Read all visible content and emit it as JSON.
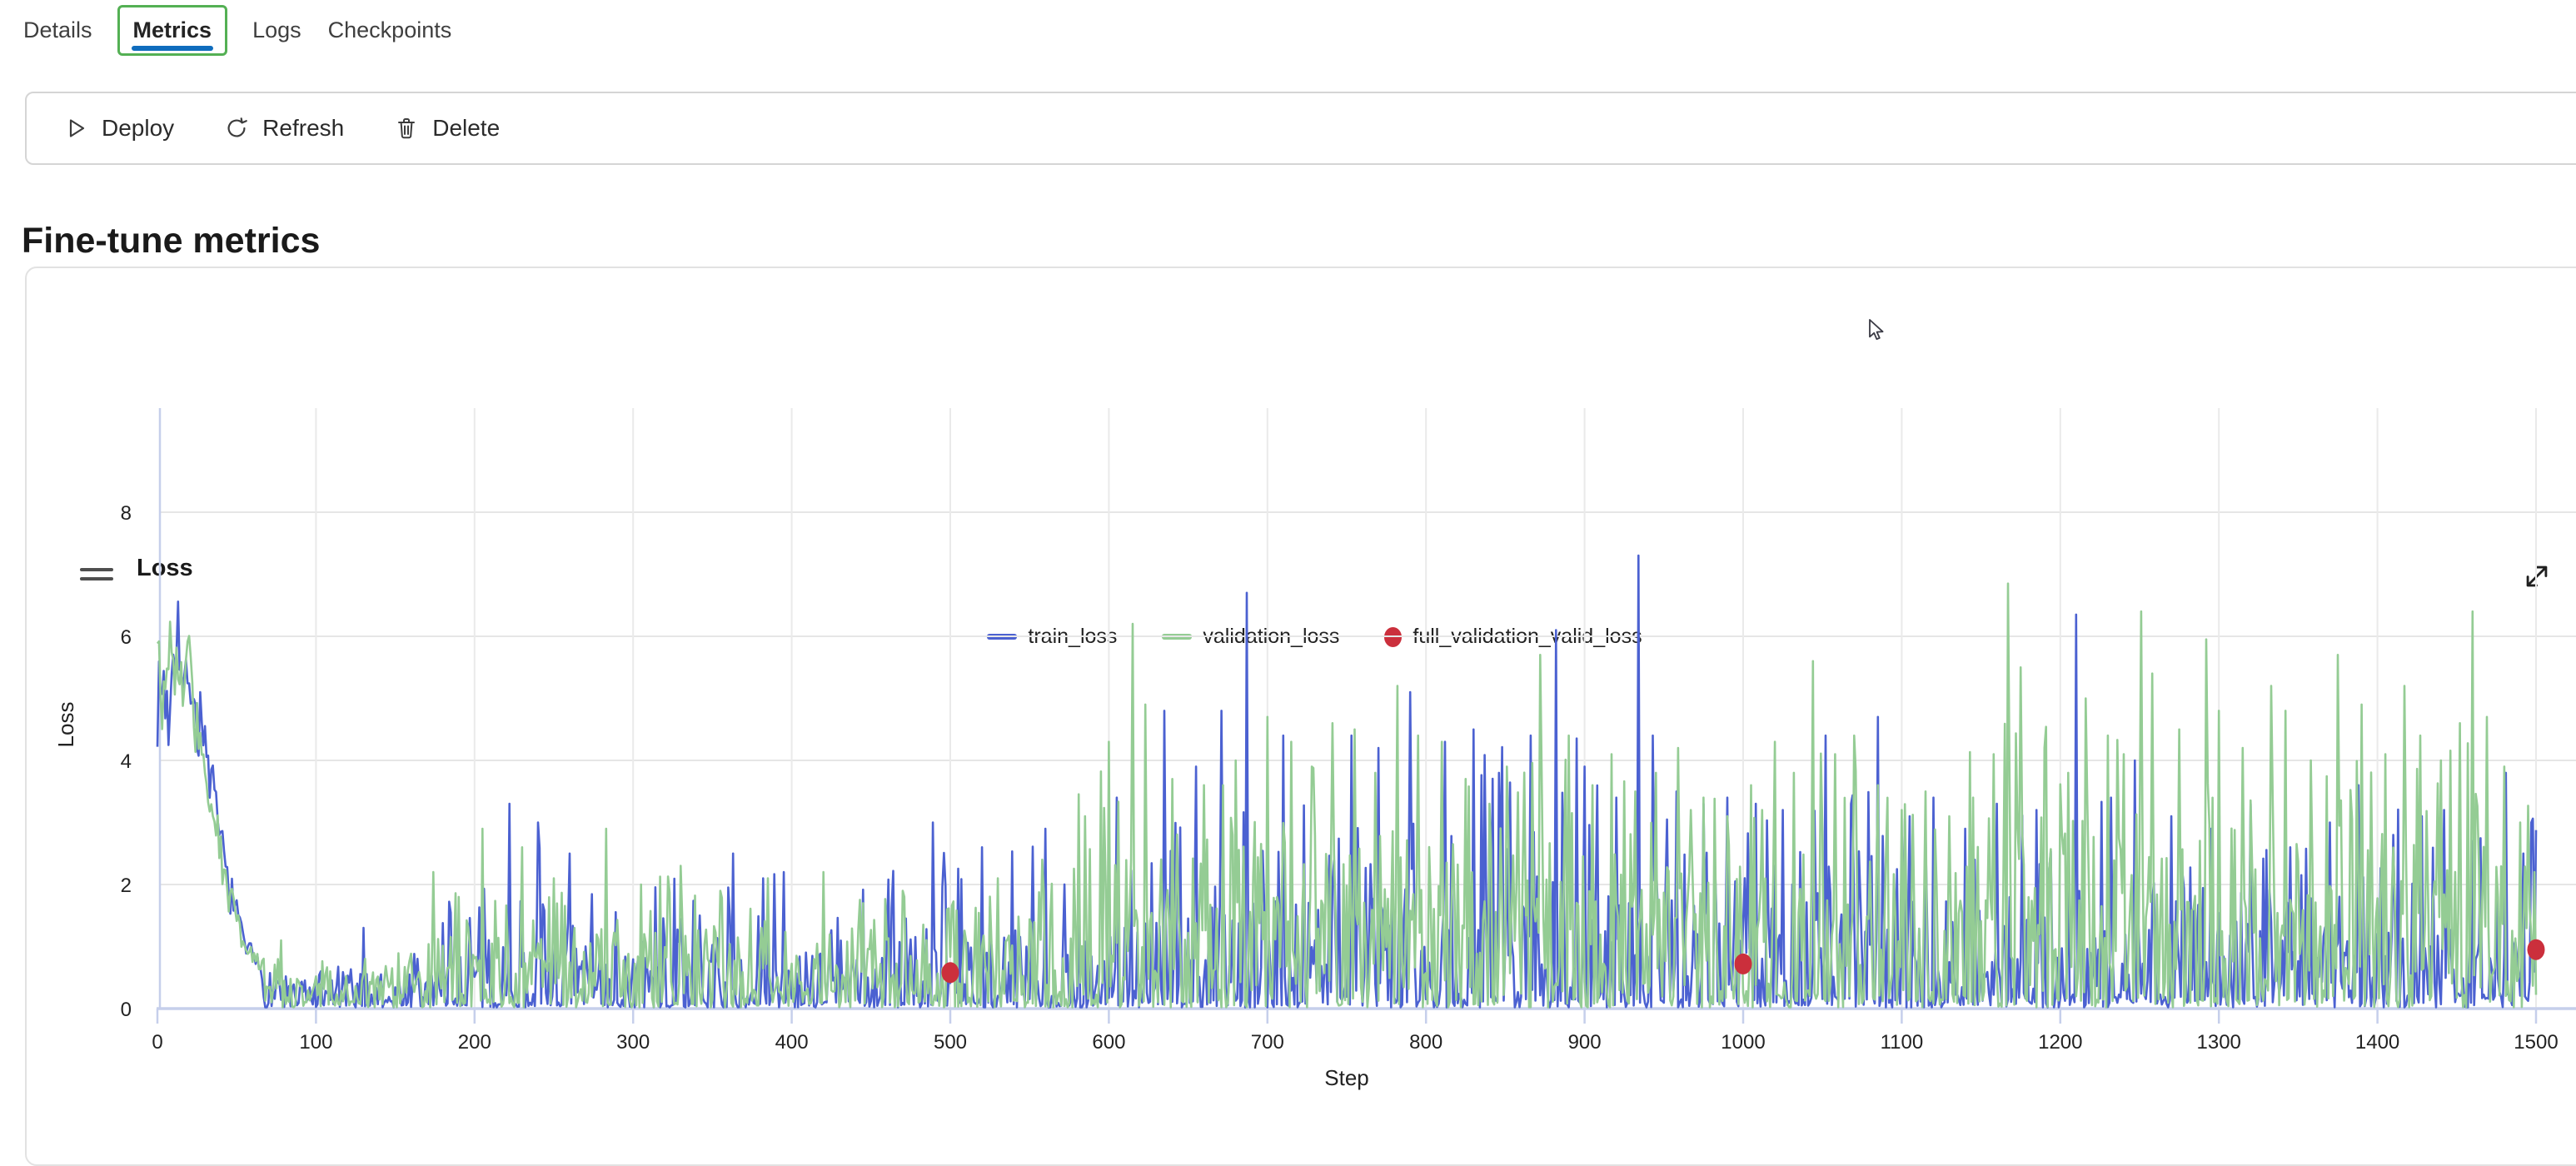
{
  "tabs": {
    "items": [
      {
        "label": "Details",
        "selected": false
      },
      {
        "label": "Metrics",
        "selected": true
      },
      {
        "label": "Logs",
        "selected": false
      },
      {
        "label": "Checkpoints",
        "selected": false
      }
    ]
  },
  "toolbar": {
    "buttons": [
      {
        "label": "Deploy",
        "icon": "play-icon"
      },
      {
        "label": "Refresh",
        "icon": "refresh-icon"
      },
      {
        "label": "Delete",
        "icon": "delete-icon"
      }
    ]
  },
  "page": {
    "heading": "Fine-tune metrics"
  },
  "card": {
    "title": "Loss"
  },
  "colors": {
    "train": "#4b61d1",
    "validation": "#94cc94",
    "full_validation": "#cb2f3c",
    "tab_underline": "#0f6cbd",
    "tab_focus": "#54b054",
    "axis": "#c6cfeb",
    "grid": "#e6e6e6"
  },
  "chart_data": {
    "type": "line",
    "title": "Loss",
    "xlabel": "Step",
    "ylabel": "Loss",
    "xlim": [
      0,
      1500
    ],
    "ylim": [
      0,
      9.7
    ],
    "x_ticks": [
      0,
      100,
      200,
      300,
      400,
      500,
      600,
      700,
      800,
      900,
      1000,
      1100,
      1200,
      1300,
      1400,
      1500
    ],
    "y_ticks": [
      0,
      2,
      4,
      6,
      8
    ],
    "grid": true,
    "legend_position": "top-center",
    "gen": {
      "floor": [
        [
          68,
          0.1
        ],
        [
          300,
          0.09
        ],
        [
          600,
          0.12
        ],
        [
          1000,
          0.16
        ],
        [
          1500,
          0.2
        ]
      ],
      "early_end": 66
    },
    "series": [
      {
        "name": "train_loss",
        "type": "line",
        "color": "#4b61d1",
        "seed": 7,
        "probs": {
          "zero": 0.34,
          "low": 0.44,
          "mid": 0.16,
          "high": 0.06
        },
        "early_path": [
          [
            0,
            4.9
          ],
          [
            4,
            5.3
          ],
          [
            7,
            4.6
          ],
          [
            10,
            5.9
          ],
          [
            13,
            6.4
          ],
          [
            16,
            4.8
          ],
          [
            19,
            5.7
          ],
          [
            22,
            5.1
          ],
          [
            25,
            4.4
          ],
          [
            28,
            4.9
          ],
          [
            31,
            3.9
          ],
          [
            34,
            3.6
          ],
          [
            38,
            3.0
          ],
          [
            42,
            2.4
          ],
          [
            46,
            1.9
          ],
          [
            50,
            1.5
          ],
          [
            55,
            1.05
          ],
          [
            60,
            0.8
          ],
          [
            66,
            0.6
          ]
        ],
        "envelope": [
          [
            68,
            0.75
          ],
          [
            150,
            0.95
          ],
          [
            200,
            2.4
          ],
          [
            250,
            2.6
          ],
          [
            310,
            2.0
          ],
          [
            370,
            2.2
          ],
          [
            430,
            2.1
          ],
          [
            490,
            2.5
          ],
          [
            550,
            2.7
          ],
          [
            610,
            3.1
          ],
          [
            660,
            3.9
          ],
          [
            700,
            4.3
          ],
          [
            760,
            3.9
          ],
          [
            820,
            4.0
          ],
          [
            880,
            4.6
          ],
          [
            940,
            4.6
          ],
          [
            1000,
            3.3
          ],
          [
            1060,
            3.7
          ],
          [
            1120,
            3.1
          ],
          [
            1180,
            3.7
          ],
          [
            1220,
            3.9
          ],
          [
            1280,
            3.2
          ],
          [
            1340,
            3.0
          ],
          [
            1400,
            3.2
          ],
          [
            1470,
            3.1
          ],
          [
            1500,
            3.1
          ]
        ],
        "peaks": [
          [
            130,
            1.3
          ],
          [
            222,
            3.3
          ],
          [
            240,
            3.0
          ],
          [
            260,
            2.5
          ],
          [
            363,
            2.5
          ],
          [
            395,
            2.2
          ],
          [
            489,
            3.0
          ],
          [
            520,
            2.6
          ],
          [
            560,
            2.9
          ],
          [
            605,
            3.4
          ],
          [
            635,
            4.8
          ],
          [
            655,
            3.9
          ],
          [
            671,
            4.8
          ],
          [
            687,
            6.7
          ],
          [
            710,
            4.4
          ],
          [
            753,
            4.4
          ],
          [
            770,
            4.2
          ],
          [
            790,
            5.1
          ],
          [
            812,
            4.3
          ],
          [
            830,
            4.5
          ],
          [
            846,
            3.8
          ],
          [
            866,
            4.4
          ],
          [
            882,
            6.1
          ],
          [
            900,
            3.9
          ],
          [
            920,
            3.4
          ],
          [
            934,
            7.3
          ],
          [
            943,
            4.4
          ],
          [
            958,
            3.5
          ],
          [
            975,
            3.3
          ],
          [
            990,
            3.4
          ],
          [
            1008,
            3.3
          ],
          [
            1025,
            3.2
          ],
          [
            1052,
            4.4
          ],
          [
            1068,
            3.3
          ],
          [
            1085,
            4.7
          ],
          [
            1105,
            3.1
          ],
          [
            1120,
            3.4
          ],
          [
            1140,
            2.9
          ],
          [
            1160,
            3.3
          ],
          [
            1185,
            3.2
          ],
          [
            1210,
            6.35
          ],
          [
            1232,
            3.4
          ],
          [
            1247,
            4.0
          ],
          [
            1270,
            3.1
          ],
          [
            1295,
            2.9
          ],
          [
            1320,
            3.3
          ],
          [
            1345,
            2.6
          ],
          [
            1370,
            3.0
          ],
          [
            1388,
            3.6
          ],
          [
            1410,
            2.8
          ],
          [
            1428,
            3.1
          ],
          [
            1442,
            3.2
          ],
          [
            1460,
            2.7
          ],
          [
            1481,
            3.8
          ],
          [
            1492,
            2.5
          ],
          [
            1497,
            3.0
          ]
        ]
      },
      {
        "name": "validation_loss",
        "type": "line",
        "color": "#94cc94",
        "seed": 99,
        "probs": {
          "zero": 0.24,
          "low": 0.42,
          "mid": 0.27,
          "high": 0.07
        },
        "early_path": [
          [
            0,
            6.1
          ],
          [
            3,
            5.2
          ],
          [
            6,
            5.6
          ],
          [
            8,
            6.2
          ],
          [
            11,
            5.1
          ],
          [
            14,
            5.6
          ],
          [
            17,
            5.0
          ],
          [
            20,
            5.8
          ],
          [
            23,
            4.7
          ],
          [
            26,
            4.3
          ],
          [
            30,
            3.7
          ],
          [
            34,
            3.2
          ],
          [
            38,
            2.7
          ],
          [
            43,
            2.1
          ],
          [
            48,
            1.6
          ],
          [
            53,
            1.2
          ],
          [
            58,
            0.9
          ],
          [
            66,
            0.62
          ]
        ],
        "envelope": [
          [
            68,
            0.8
          ],
          [
            150,
            1.0
          ],
          [
            200,
            2.1
          ],
          [
            260,
            1.9
          ],
          [
            320,
            2.1
          ],
          [
            380,
            1.8
          ],
          [
            440,
            1.9
          ],
          [
            500,
            1.7
          ],
          [
            545,
            2.2
          ],
          [
            600,
            4.1
          ],
          [
            650,
            3.7
          ],
          [
            705,
            4.0
          ],
          [
            760,
            3.9
          ],
          [
            820,
            3.7
          ],
          [
            880,
            4.1
          ],
          [
            940,
            3.7
          ],
          [
            1000,
            3.4
          ],
          [
            1050,
            4.1
          ],
          [
            1110,
            3.3
          ],
          [
            1170,
            4.8
          ],
          [
            1230,
            4.3
          ],
          [
            1290,
            4.4
          ],
          [
            1350,
            4.2
          ],
          [
            1410,
            4.3
          ],
          [
            1470,
            4.5
          ],
          [
            1500,
            3.0
          ]
        ],
        "peaks": [
          [
            78,
            1.1
          ],
          [
            174,
            2.2
          ],
          [
            190,
            1.8
          ],
          [
            205,
            2.9
          ],
          [
            230,
            2.6
          ],
          [
            250,
            2.1
          ],
          [
            283,
            2.9
          ],
          [
            305,
            2.0
          ],
          [
            330,
            2.3
          ],
          [
            355,
            1.9
          ],
          [
            385,
            2.1
          ],
          [
            420,
            2.2
          ],
          [
            445,
            1.7
          ],
          [
            470,
            1.9
          ],
          [
            498,
            1.6
          ],
          [
            530,
            2.1
          ],
          [
            558,
            2.4
          ],
          [
            585,
            3.1
          ],
          [
            600,
            4.3
          ],
          [
            615,
            6.2
          ],
          [
            623,
            4.9
          ],
          [
            640,
            3.7
          ],
          [
            660,
            3.6
          ],
          [
            680,
            4.0
          ],
          [
            700,
            4.7
          ],
          [
            715,
            4.3
          ],
          [
            728,
            3.9
          ],
          [
            741,
            4.6
          ],
          [
            755,
            4.5
          ],
          [
            768,
            3.8
          ],
          [
            782,
            5.2
          ],
          [
            795,
            4.4
          ],
          [
            810,
            4.3
          ],
          [
            825,
            3.7
          ],
          [
            840,
            3.3
          ],
          [
            851,
            3.9
          ],
          [
            872,
            5.7
          ],
          [
            890,
            4.4
          ],
          [
            905,
            3.6
          ],
          [
            917,
            4.1
          ],
          [
            932,
            3.5
          ],
          [
            945,
            3.8
          ],
          [
            959,
            4.2
          ],
          [
            975,
            3.4
          ],
          [
            990,
            3.1
          ],
          [
            1005,
            3.6
          ],
          [
            1020,
            4.3
          ],
          [
            1032,
            3.8
          ],
          [
            1044,
            5.6
          ],
          [
            1058,
            4.1
          ],
          [
            1070,
            4.4
          ],
          [
            1085,
            3.6
          ],
          [
            1100,
            3.2
          ],
          [
            1115,
            3.5
          ],
          [
            1130,
            3.1
          ],
          [
            1145,
            3.4
          ],
          [
            1158,
            4.1
          ],
          [
            1167,
            6.85
          ],
          [
            1175,
            5.5
          ],
          [
            1190,
            4.2
          ],
          [
            1205,
            3.8
          ],
          [
            1216,
            5.0
          ],
          [
            1230,
            4.4
          ],
          [
            1240,
            4.1
          ],
          [
            1251,
            6.4
          ],
          [
            1258,
            5.4
          ],
          [
            1275,
            4.5
          ],
          [
            1292,
            5.95
          ],
          [
            1300,
            4.8
          ],
          [
            1315,
            4.2
          ],
          [
            1333,
            5.2
          ],
          [
            1342,
            4.8
          ],
          [
            1358,
            4.0
          ],
          [
            1375,
            5.7
          ],
          [
            1390,
            4.9
          ],
          [
            1405,
            4.1
          ],
          [
            1417,
            5.2
          ],
          [
            1427,
            4.4
          ],
          [
            1440,
            4.0
          ],
          [
            1452,
            4.6
          ],
          [
            1460,
            6.4
          ],
          [
            1469,
            4.7
          ],
          [
            1480,
            3.9
          ],
          [
            1490,
            3.0
          ],
          [
            1499,
            2.2
          ]
        ]
      },
      {
        "name": "full_validation_valid_loss",
        "type": "scatter",
        "color": "#cb2f3c",
        "points": [
          [
            500,
            0.58
          ],
          [
            1000,
            0.72
          ],
          [
            1500,
            0.95
          ]
        ]
      }
    ]
  }
}
